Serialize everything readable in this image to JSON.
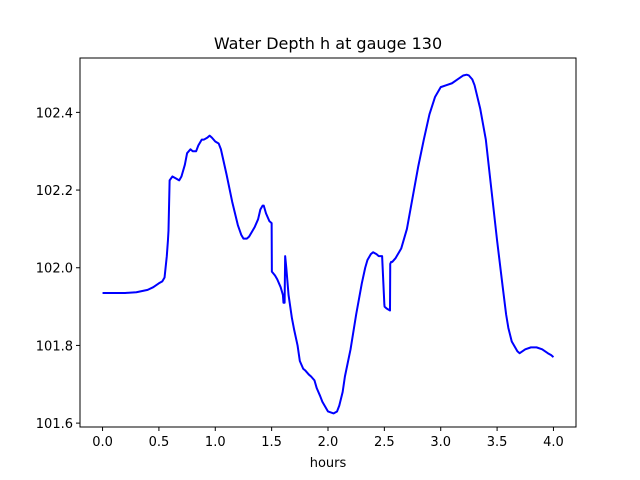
{
  "chart_data": {
    "type": "line",
    "title": "Water Depth h at gauge 130",
    "xlabel": "hours",
    "ylabel": "",
    "xlim": [
      -0.2,
      4.2
    ],
    "ylim": [
      101.59,
      102.54
    ],
    "grid": false,
    "xticks": [
      0.0,
      0.5,
      1.0,
      1.5,
      2.0,
      2.5,
      3.0,
      3.5,
      4.0
    ],
    "xtick_labels": [
      "0.0",
      "0.5",
      "1.0",
      "1.5",
      "2.0",
      "2.5",
      "3.0",
      "3.5",
      "4.0"
    ],
    "yticks": [
      101.6,
      101.8,
      102.0,
      102.2,
      102.4
    ],
    "ytick_labels": [
      "101.6",
      "101.8",
      "102.0",
      "102.2",
      "102.4"
    ],
    "series": [
      {
        "color": "#0000ff",
        "x": [
          0.0,
          0.2,
          0.3,
          0.4,
          0.45,
          0.5,
          0.53,
          0.55,
          0.57,
          0.58,
          0.585,
          0.595,
          0.62,
          0.65,
          0.68,
          0.7,
          0.73,
          0.75,
          0.78,
          0.8,
          0.83,
          0.85,
          0.88,
          0.9,
          0.93,
          0.95,
          0.97,
          1.0,
          1.03,
          1.05,
          1.1,
          1.15,
          1.2,
          1.23,
          1.25,
          1.28,
          1.3,
          1.33,
          1.35,
          1.38,
          1.4,
          1.42,
          1.43,
          1.45,
          1.48,
          1.5,
          1.502,
          1.53,
          1.55,
          1.58,
          1.6,
          1.605,
          1.615,
          1.62,
          1.63,
          1.65,
          1.68,
          1.7,
          1.73,
          1.75,
          1.78,
          1.8,
          1.83,
          1.85,
          1.88,
          1.9,
          1.93,
          1.95,
          1.98,
          2.0,
          2.05,
          2.08,
          2.1,
          2.13,
          2.15,
          2.2,
          2.25,
          2.3,
          2.33,
          2.35,
          2.38,
          2.4,
          2.43,
          2.45,
          2.48,
          2.5,
          2.502,
          2.52,
          2.55,
          2.552,
          2.56,
          2.57,
          2.6,
          2.63,
          2.65,
          2.7,
          2.75,
          2.8,
          2.85,
          2.9,
          2.95,
          3.0,
          3.05,
          3.1,
          3.15,
          3.2,
          3.23,
          3.25,
          3.28,
          3.3,
          3.35,
          3.4,
          3.45,
          3.5,
          3.55,
          3.58,
          3.6,
          3.63,
          3.65,
          3.68,
          3.7,
          3.75,
          3.8,
          3.85,
          3.9,
          3.95,
          3.98,
          4.0
        ],
        "y": [
          101.935,
          101.935,
          101.937,
          101.943,
          101.95,
          101.96,
          101.965,
          101.975,
          102.03,
          102.07,
          102.095,
          102.225,
          102.235,
          102.23,
          102.225,
          102.235,
          102.265,
          102.295,
          102.305,
          102.3,
          102.3,
          102.315,
          102.33,
          102.33,
          102.335,
          102.34,
          102.335,
          102.325,
          102.32,
          102.305,
          102.24,
          102.17,
          102.11,
          102.085,
          102.075,
          102.075,
          102.08,
          102.095,
          102.105,
          102.125,
          102.15,
          102.16,
          102.16,
          102.14,
          102.12,
          102.115,
          101.99,
          101.98,
          101.97,
          101.95,
          101.93,
          101.91,
          101.91,
          102.03,
          102.0,
          101.93,
          101.87,
          101.84,
          101.8,
          101.76,
          101.74,
          101.735,
          101.725,
          101.72,
          101.71,
          101.69,
          101.67,
          101.655,
          101.64,
          101.63,
          101.625,
          101.63,
          101.645,
          101.68,
          101.72,
          101.79,
          101.88,
          101.96,
          102.0,
          102.02,
          102.035,
          102.04,
          102.035,
          102.03,
          102.03,
          101.905,
          101.9,
          101.895,
          101.89,
          102.01,
          102.015,
          102.015,
          102.025,
          102.04,
          102.05,
          102.1,
          102.18,
          102.26,
          102.33,
          102.395,
          102.44,
          102.465,
          102.47,
          102.475,
          102.485,
          102.495,
          102.497,
          102.495,
          102.485,
          102.47,
          102.41,
          102.33,
          102.2,
          102.07,
          101.95,
          101.88,
          101.845,
          101.81,
          101.8,
          101.785,
          101.78,
          101.79,
          101.795,
          101.795,
          101.79,
          101.78,
          101.775,
          101.77
        ]
      }
    ]
  }
}
